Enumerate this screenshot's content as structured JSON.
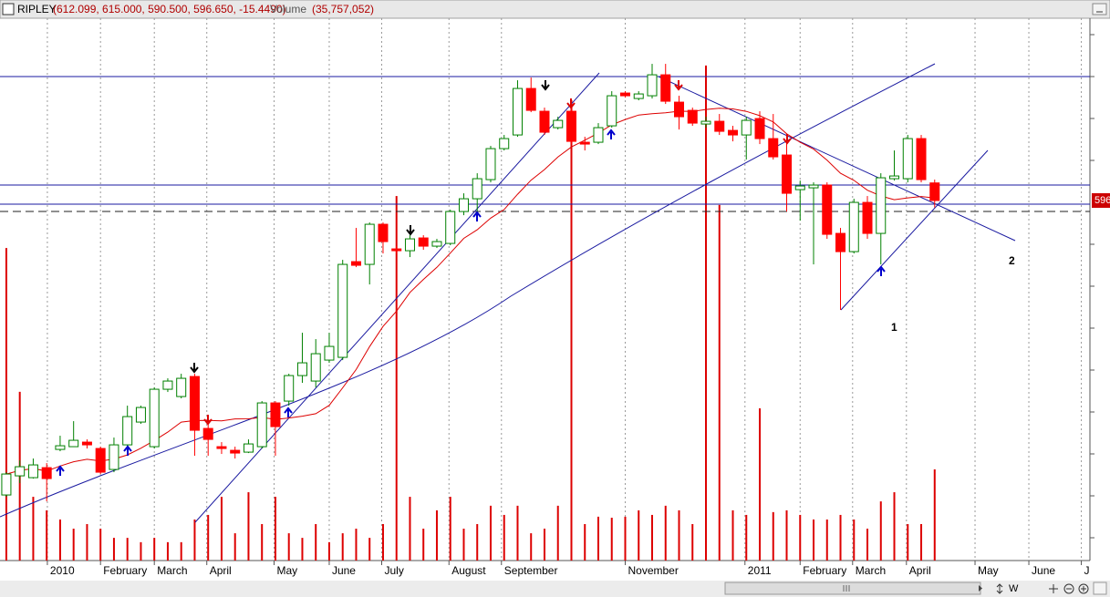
{
  "window_title": "RIPLEY",
  "quote": "(612.099, 615.000, 590.500, 596.650, -15.4490)",
  "volume_label": "Volume",
  "volume_quote": "(35,757,052)",
  "toolbar_label": "W",
  "chart_data": {
    "type": "candlestick",
    "open": [
      338.2,
      355.0,
      353.4,
      362.2,
      378.2,
      380.6,
      384.6,
      379.0,
      360.6,
      382.2,
      402.2,
      380.6,
      431.0,
      424.6,
      442.2,
      396.6,
      380.6,
      377.4,
      375.8,
      380.6,
      419.0,
      420.6,
      443.0,
      438.2,
      456.6,
      459.0,
      543.0,
      540.6,
      575.8,
      554.2,
      552.6,
      563.8,
      556.6,
      559.0,
      587.0,
      598.2,
      615.0,
      642.2,
      654.2,
      695.0,
      675.0,
      660.6,
      675.0,
      647.8,
      647.8,
      662.2,
      691.0,
      686.2,
      688.6,
      707.0,
      683.0,
      675.8,
      663.8,
      666.2,
      658.2,
      654.2,
      668.6,
      651.0,
      636.6,
      606.2,
      607.8,
      610.2,
      567.8,
      551.8,
      595.0,
      567.8,
      615.8,
      615.8,
      651.0,
      612.099
    ],
    "high": [
      358.2,
      368.6,
      370.2,
      366.2,
      390.2,
      403.0,
      387.0,
      380.6,
      388.6,
      416.6,
      416.6,
      432.6,
      440.6,
      444.6,
      444.6,
      400.6,
      384.6,
      380.6,
      387.0,
      420.6,
      420.6,
      444.6,
      480.6,
      475.0,
      480.6,
      544.6,
      572.6,
      577.4,
      577.4,
      556.6,
      566.2,
      566.2,
      563.0,
      588.6,
      603.0,
      620.6,
      644.6,
      654.2,
      702.2,
      704.6,
      678.2,
      670.2,
      684.6,
      652.6,
      664.6,
      692.6,
      692.6,
      692.6,
      716.6,
      716.6,
      688.6,
      678.2,
      670.2,
      672.6,
      662.2,
      670.2,
      675.0,
      672.6,
      652.6,
      614.2,
      612.6,
      612.6,
      572.6,
      598.2,
      600.6,
      620.6,
      640.6,
      654.2,
      654.2,
      615.0
    ],
    "low": [
      336.6,
      348.6,
      352.6,
      332.6,
      376.6,
      380.6,
      379.0,
      356.6,
      358.2,
      380.6,
      400.6,
      379.0,
      428.6,
      423.0,
      372.6,
      372.6,
      374.2,
      370.2,
      375.0,
      379.0,
      372.6,
      416.6,
      436.6,
      432.6,
      454.2,
      456.6,
      538.2,
      523.0,
      550.2,
      550.2,
      547.0,
      553.4,
      555.0,
      557.4,
      583.8,
      584.6,
      612.6,
      640.6,
      652.6,
      674.2,
      654.2,
      659.0,
      646.2,
      640.6,
      646.2,
      660.6,
      687.0,
      684.6,
      686.2,
      681.4,
      659.0,
      662.2,
      660.6,
      654.2,
      648.6,
      632.6,
      646.2,
      632.6,
      587.0,
      579.0,
      540.6,
      563.0,
      500.6,
      550.2,
      563.0,
      540.6,
      614.2,
      612.6,
      612.6,
      590.5
    ],
    "close": [
      356.6,
      363.0,
      364.6,
      352.6,
      381.4,
      386.2,
      382.2,
      358.2,
      382.2,
      407.0,
      415.0,
      431.0,
      438.2,
      440.6,
      395.0,
      387.0,
      379.0,
      375.0,
      383.0,
      419.0,
      398.2,
      443.0,
      454.2,
      462.2,
      468.6,
      540.6,
      539.8,
      575.8,
      560.6,
      552.6,
      563.0,
      556.6,
      560.6,
      587.0,
      598.2,
      615.8,
      642.2,
      651.0,
      695.0,
      675.8,
      656.6,
      667.0,
      648.6,
      646.2,
      660.6,
      688.6,
      688.6,
      690.2,
      707.0,
      683.8,
      670.2,
      664.6,
      666.2,
      657.4,
      654.2,
      667.0,
      651.0,
      635.0,
      603.0,
      609.4,
      610.2,
      567.0,
      551.8,
      595.0,
      567.8,
      616.6,
      618.2,
      651.0,
      615.0,
      596.65
    ],
    "volume": [
      122600000,
      66200000,
      25000000,
      19700000,
      16100000,
      12500000,
      14300000,
      12500000,
      8900000,
      8900000,
      7200000,
      8900000,
      7200000,
      7200000,
      16100000,
      17900000,
      25000000,
      10700000,
      26800000,
      14300000,
      25000000,
      10700000,
      8900000,
      14300000,
      7200000,
      10700000,
      12500000,
      8900000,
      14300000,
      143000000,
      25000000,
      12500000,
      19700000,
      25000000,
      12500000,
      14300000,
      21500000,
      17900000,
      21500000,
      10700000,
      12500000,
      21500000,
      180600000,
      14300000,
      17200000,
      16800000,
      17200000,
      19700000,
      17900000,
      21500000,
      19700000,
      14300000,
      194200000,
      139500000,
      19700000,
      17900000,
      59700000,
      19000000,
      19700000,
      17900000,
      16100000,
      16100000,
      17900000,
      16100000,
      12500000,
      23200000,
      26800000,
      14300000,
      14300000,
      35757052
    ],
    "up_color": "#008000",
    "down_color": "#ff0000",
    "volume_color": "#dd0000",
    "ma_color": "#dd0000",
    "xlim": [
      -0.47,
      80.54
    ],
    "ylim": [
      280.65,
      756.65
    ],
    "y2lim": [
      0,
      212750000
    ],
    "grid": true,
    "xticks": [
      {
        "value": 3.05,
        "label": "2010"
      },
      {
        "value": 7.0,
        "label": "February"
      },
      {
        "value": 11.0,
        "label": "March"
      },
      {
        "value": 14.9,
        "label": "April"
      },
      {
        "value": 19.9,
        "label": "May"
      },
      {
        "value": 24.0,
        "label": "June"
      },
      {
        "value": 27.9,
        "label": "July"
      },
      {
        "value": 32.9,
        "label": "August"
      },
      {
        "value": 36.8,
        "label": "September"
      },
      {
        "value": 46.0,
        "label": "November"
      },
      {
        "value": 54.9,
        "label": "2011"
      },
      {
        "value": 59.0,
        "label": "February"
      },
      {
        "value": 62.9,
        "label": "March"
      },
      {
        "value": 66.9,
        "label": "April"
      },
      {
        "value": 72.0,
        "label": "May"
      },
      {
        "value": 76.0,
        "label": "June"
      },
      {
        "value": 79.9,
        "label": "J"
      }
    ],
    "annotations": [
      "1",
      "2"
    ]
  }
}
